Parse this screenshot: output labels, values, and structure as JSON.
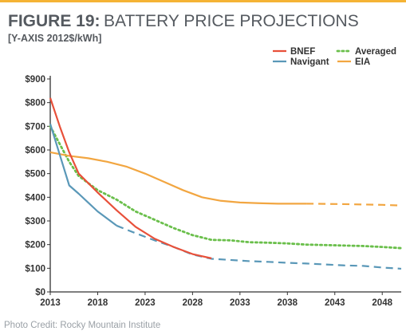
{
  "figure_label": "FIGURE 19:",
  "credit": "Photo Credit: Rocky Mountain Institute",
  "colors": {
    "accent_rule": "#f5b335",
    "BNEF": "#e8503a",
    "Navigant": "#5a98b8",
    "Averaged": "#6abf4b",
    "EIA": "#f2a641"
  },
  "chart_data": {
    "type": "line",
    "title": "BATTERY PRICE PROJECTIONS",
    "subtitle": "[Y-AXIS 2012$/kWh]",
    "xlabel": "",
    "ylabel": "",
    "xlim": [
      2013,
      2050
    ],
    "ylim": [
      0,
      900
    ],
    "x_ticks": [
      "2013",
      "2018",
      "2023",
      "2028",
      "2033",
      "2038",
      "2043",
      "2048"
    ],
    "y_ticks": [
      "$0",
      "$100",
      "$200",
      "$300",
      "$400",
      "$500",
      "$600",
      "$700",
      "$800",
      "$900"
    ],
    "grid": false,
    "legend_position": "top-right",
    "series": [
      {
        "name": "BNEF",
        "style": "solid",
        "points": [
          [
            2013,
            820
          ],
          [
            2014,
            700
          ],
          [
            2015,
            590
          ],
          [
            2016,
            500
          ],
          [
            2018,
            420
          ],
          [
            2020,
            345
          ],
          [
            2022,
            275
          ],
          [
            2024,
            225
          ],
          [
            2026,
            190
          ],
          [
            2028,
            160
          ],
          [
            2030,
            142
          ]
        ]
      },
      {
        "name": "Navigant",
        "style": "solid",
        "points": [
          [
            2013,
            710
          ],
          [
            2014,
            580
          ],
          [
            2015,
            450
          ],
          [
            2016,
            415
          ],
          [
            2018,
            340
          ],
          [
            2020,
            280
          ]
        ]
      },
      {
        "name": "Navigant-EIA projection",
        "style": "dashed",
        "points": [
          [
            2020,
            280
          ],
          [
            2022,
            248
          ],
          [
            2024,
            218
          ],
          [
            2026,
            190
          ],
          [
            2028,
            158
          ],
          [
            2030,
            140
          ],
          [
            2032,
            135
          ],
          [
            2034,
            130
          ],
          [
            2036,
            127
          ],
          [
            2038,
            123
          ],
          [
            2040,
            120
          ],
          [
            2042,
            116
          ],
          [
            2044,
            112
          ],
          [
            2046,
            110
          ],
          [
            2048,
            103
          ],
          [
            2050,
            98
          ]
        ]
      },
      {
        "name": "Averaged",
        "style": "dotted",
        "points": [
          [
            2013,
            700
          ],
          [
            2015,
            550
          ],
          [
            2016,
            490
          ],
          [
            2018,
            430
          ],
          [
            2020,
            390
          ],
          [
            2022,
            340
          ],
          [
            2024,
            305
          ],
          [
            2026,
            270
          ],
          [
            2028,
            240
          ],
          [
            2030,
            220
          ],
          [
            2032,
            218
          ],
          [
            2034,
            210
          ],
          [
            2036,
            208
          ],
          [
            2038,
            205
          ],
          [
            2040,
            200
          ],
          [
            2042,
            198
          ],
          [
            2044,
            196
          ],
          [
            2046,
            194
          ],
          [
            2048,
            190
          ],
          [
            2050,
            185
          ]
        ]
      },
      {
        "name": "EIA",
        "style": "solid",
        "points": [
          [
            2013,
            590
          ],
          [
            2015,
            575
          ],
          [
            2017,
            565
          ],
          [
            2019,
            550
          ],
          [
            2021,
            530
          ],
          [
            2023,
            500
          ],
          [
            2025,
            465
          ],
          [
            2027,
            430
          ],
          [
            2029,
            400
          ],
          [
            2031,
            385
          ],
          [
            2033,
            378
          ],
          [
            2035,
            375
          ],
          [
            2037,
            373
          ],
          [
            2040,
            373
          ]
        ]
      },
      {
        "name": "EIA projection",
        "style": "dashed",
        "points": [
          [
            2040,
            373
          ],
          [
            2044,
            371
          ],
          [
            2048,
            368
          ],
          [
            2050,
            365
          ]
        ]
      }
    ],
    "legend": [
      {
        "name": "BNEF",
        "style": "solid"
      },
      {
        "name": "Navigant",
        "style": "solid"
      },
      {
        "name": "Averaged",
        "style": "dotted"
      },
      {
        "name": "EIA",
        "style": "solid"
      }
    ]
  }
}
